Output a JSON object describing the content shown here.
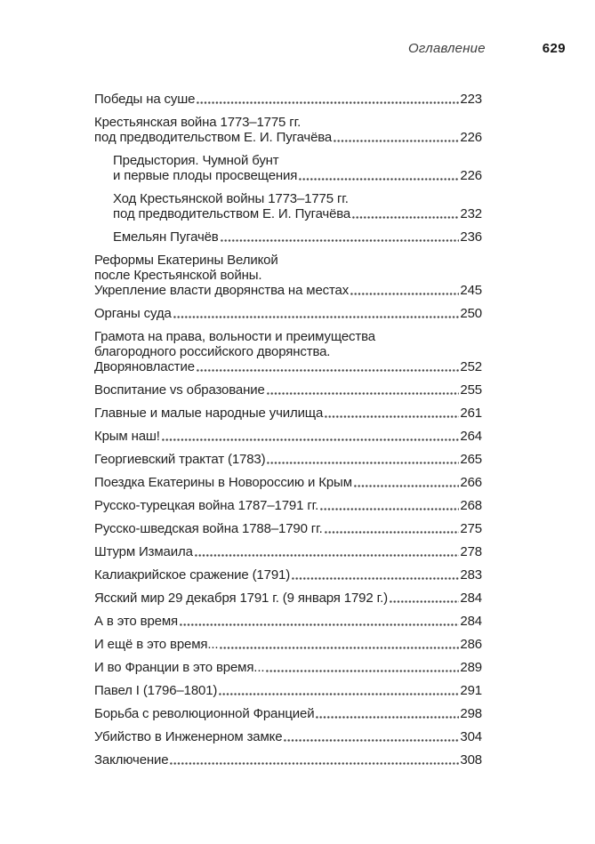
{
  "header": {
    "running_title": "Оглавление",
    "page_number": "629"
  },
  "toc": {
    "entries": [
      {
        "level": 1,
        "lines": [
          "Победы на суше"
        ],
        "page": "223"
      },
      {
        "level": 1,
        "lines": [
          "Крестьянская война 1773–1775 гг.",
          "под предводительством Е. И. Пугачёва"
        ],
        "page": "226"
      },
      {
        "level": 2,
        "lines": [
          "Предыстория. Чумной бунт",
          "и первые плоды просвещения"
        ],
        "page": "226"
      },
      {
        "level": 2,
        "lines": [
          "Ход Крестьянской войны 1773–1775 гг.",
          "под предводительством Е. И. Пугачёва"
        ],
        "page": "232"
      },
      {
        "level": 2,
        "lines": [
          "Емельян Пугачёв"
        ],
        "page": "236"
      },
      {
        "level": 1,
        "lines": [
          "Реформы Екатерины Великой",
          "после Крестьянской войны.",
          "Укрепление власти дворянства на местах"
        ],
        "page": "245"
      },
      {
        "level": 1,
        "lines": [
          "Органы суда"
        ],
        "page": "250"
      },
      {
        "level": 1,
        "lines": [
          "Грамота на права, вольности и преимущества",
          "благородного российского дворянства.",
          "Дворяновластие"
        ],
        "page": "252"
      },
      {
        "level": 1,
        "lines": [
          "Воспитание vs образование"
        ],
        "page": "255"
      },
      {
        "level": 1,
        "lines": [
          "Главные и малые народные училища"
        ],
        "page": "261"
      },
      {
        "level": 1,
        "lines": [
          "Крым наш!"
        ],
        "page": "264"
      },
      {
        "level": 1,
        "lines": [
          "Георгиевский трактат (1783)"
        ],
        "page": "265"
      },
      {
        "level": 1,
        "lines": [
          "Поездка Екатерины в Новороссию и Крым"
        ],
        "page": "266"
      },
      {
        "level": 1,
        "lines": [
          "Русско-турецкая война 1787–1791 гг."
        ],
        "page": "268"
      },
      {
        "level": 1,
        "lines": [
          "Русско-шведская война 1788–1790 гг."
        ],
        "page": "275"
      },
      {
        "level": 1,
        "lines": [
          "Штурм Измаила"
        ],
        "page": "278"
      },
      {
        "level": 1,
        "lines": [
          "Калиакрийское сражение (1791)"
        ],
        "page": "283"
      },
      {
        "level": 1,
        "lines": [
          "Ясский мир 29 декабря 1791 г. (9 января 1792 г.)"
        ],
        "page": "284"
      },
      {
        "level": 1,
        "lines": [
          "А в это время"
        ],
        "page": "284"
      },
      {
        "level": 1,
        "lines": [
          "И ещё в это время..."
        ],
        "page": "286"
      },
      {
        "level": 1,
        "lines": [
          "И во Франции в это время..."
        ],
        "page": "289"
      },
      {
        "level": 1,
        "lines": [
          "Павел I (1796–1801)"
        ],
        "page": "291"
      },
      {
        "level": 1,
        "lines": [
          "Борьба с революционной Францией"
        ],
        "page": "298"
      },
      {
        "level": 1,
        "lines": [
          "Убийство в Инженерном замке"
        ],
        "page": "304"
      },
      {
        "level": 1,
        "lines": [
          "Заключение"
        ],
        "page": "308"
      }
    ]
  }
}
